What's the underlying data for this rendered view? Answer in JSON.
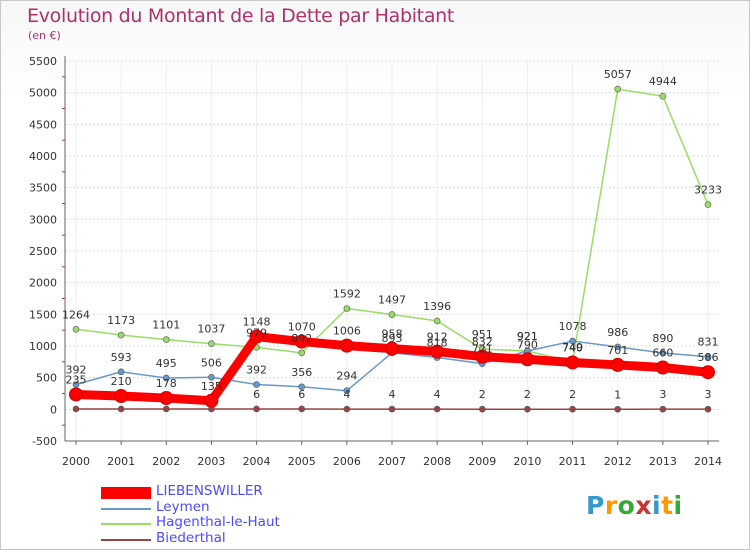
{
  "chart_data": {
    "type": "line",
    "title": "Evolution du Montant de la Dette par Habitant",
    "unit_label": "(en €)",
    "xlabel": "",
    "ylabel": "",
    "ylim": [
      -500,
      5500
    ],
    "y_ticks": [
      -500,
      0,
      500,
      1000,
      1500,
      2000,
      2500,
      3000,
      3500,
      4000,
      4500,
      5000,
      5500
    ],
    "categories": [
      "2000",
      "2001",
      "2002",
      "2003",
      "2004",
      "2005",
      "2006",
      "2007",
      "2008",
      "2009",
      "2010",
      "2011",
      "2012",
      "2013",
      "2014"
    ],
    "series": [
      {
        "name": "LIEBENSWILLER",
        "color": "#ff0000",
        "label_color": "#333333",
        "values": [
          235,
          210,
          178,
          135,
          1148,
          1070,
          1006,
          958,
          912,
          832,
          790,
          740,
          701,
          660,
          586
        ],
        "labels": [
          "235",
          "210",
          "178",
          "135",
          "1148",
          "1070",
          "1006",
          "958",
          "912",
          "832",
          "790",
          "740",
          "701",
          "660",
          "586"
        ]
      },
      {
        "name": "Leymen",
        "color": "#6699cc",
        "label_color": "#333333",
        "values": [
          392,
          593,
          495,
          506,
          392,
          356,
          294,
          893,
          818,
          721,
          921,
          1078,
          986,
          890,
          831
        ],
        "labels": [
          "392",
          "593",
          "495",
          "506",
          "392",
          "356",
          "294",
          "893",
          "818",
          "721",
          "921",
          "1078",
          "986",
          "890",
          "831"
        ]
      },
      {
        "name": "Hagenthal-le-Haut",
        "color": "#99dd66",
        "label_color": "#333333",
        "values": [
          1264,
          1173,
          1101,
          1037,
          979,
          892,
          1592,
          1497,
          1396,
          951,
          921,
          749,
          5057,
          4944,
          3233
        ],
        "labels": [
          "1264",
          "1173",
          "1101",
          "1037",
          "979",
          "892",
          "1592",
          "1497",
          "1396",
          "951",
          "921",
          "749",
          "5057",
          "4944",
          "3233"
        ]
      },
      {
        "name": "Biederthal",
        "color": "#994444",
        "label_color": "#333333",
        "values": [
          6,
          6,
          6,
          6,
          6,
          6,
          4,
          4,
          4,
          2,
          2,
          2,
          1,
          3,
          3
        ],
        "labels": [
          "",
          "",
          "",
          "",
          "6",
          "6",
          "4",
          "4",
          "4",
          "2",
          "2",
          "2",
          "1",
          "3",
          "3"
        ]
      }
    ]
  },
  "legend": {
    "items": [
      {
        "label": "LIEBENSWILLER",
        "color": "#ff0000",
        "text_color": "#4a4aff"
      },
      {
        "label": "Leymen",
        "color": "#6699cc",
        "text_color": "#4a4aff"
      },
      {
        "label": "Hagenthal-le-Haut",
        "color": "#99dd66",
        "text_color": "#4a4aff"
      },
      {
        "label": "Biederthal",
        "color": "#994444",
        "text_color": "#4a4aff"
      }
    ]
  },
  "brand": {
    "letters": [
      "P",
      "r",
      "o",
      "x",
      "i",
      "t",
      "i"
    ],
    "colors": [
      "#3399cc",
      "#ff9900",
      "#33aa33",
      "#cc3333",
      "#3399cc",
      "#ff9900",
      "#33aa33"
    ]
  },
  "colors": {
    "title": "#b0306a",
    "axis": "#666666",
    "grid": "#dddddd"
  }
}
